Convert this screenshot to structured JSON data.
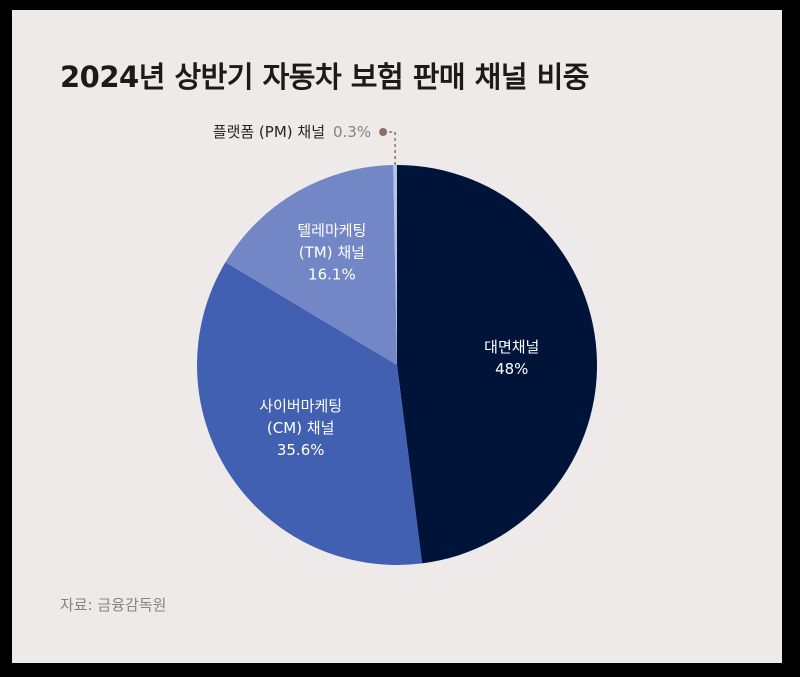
{
  "title": "2024년 상반기 자동차 보험 판매 채널 비중",
  "source": "자료: 금융감독원",
  "chart_data": {
    "type": "pie",
    "title": "2024년 상반기 자동차 보험 판매 채널 비중",
    "slices": [
      {
        "name": "대면채널",
        "name_lines": [
          "대면채널"
        ],
        "value": 48,
        "value_label": "48%",
        "color": "#00143a",
        "text_color": "#ffffff"
      },
      {
        "name": "사이버마케팅 (CM) 채널",
        "name_lines": [
          "사이버마케팅",
          "(CM) 채널"
        ],
        "value": 35.6,
        "value_label": "35.6%",
        "color": "#4260b2",
        "text_color": "#ffffff"
      },
      {
        "name": "텔레마케팅 (TM) 채널",
        "name_lines": [
          "텔레마케팅",
          "(TM) 채널"
        ],
        "value": 16.1,
        "value_label": "16.1%",
        "color": "#7386c6",
        "text_color": "#ffffff"
      },
      {
        "name": "플랫폼 (PM) 채널",
        "name_lines": [
          "플랫폼 (PM) 채널"
        ],
        "value": 0.3,
        "value_label": "0.3%",
        "color": "#b9c3e3",
        "text_color": "#2a2222",
        "callout": true
      }
    ],
    "callout_color": "#8a6e6e",
    "callout_value_color": "#8a8080"
  }
}
